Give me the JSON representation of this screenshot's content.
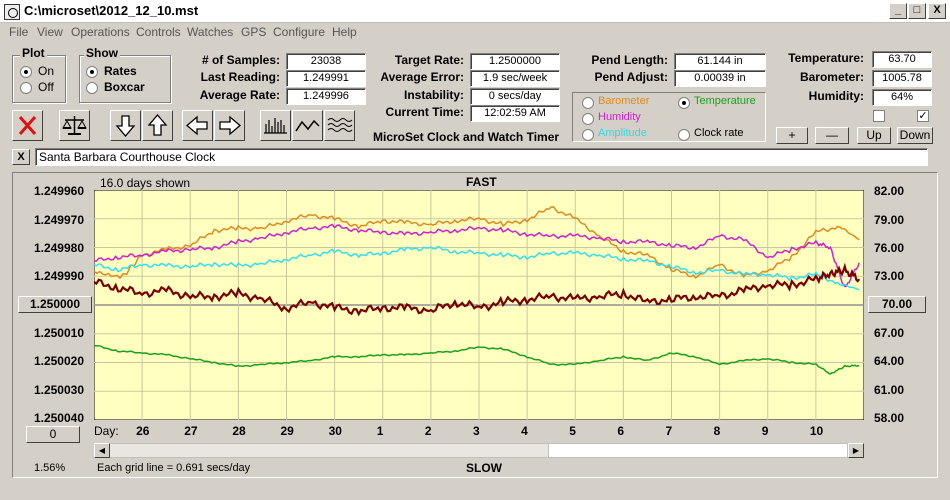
{
  "window": {
    "title": "C:\\microset\\2012_12_10.mst",
    "min": "_",
    "max": "□",
    "close": "X"
  },
  "menu": [
    "File",
    "View",
    "Operations",
    "Controls",
    "Watches",
    "GPS",
    "Configure",
    "Help"
  ],
  "plot_group": {
    "label": "Plot",
    "on": "On",
    "off": "Off"
  },
  "show_group": {
    "label": "Show",
    "rates": "Rates",
    "boxcar": "Boxcar"
  },
  "stats": [
    {
      "label": "# of Samples:",
      "value": "23038"
    },
    {
      "label": "Last Reading:",
      "value": "1.249991"
    },
    {
      "label": "Average Rate:",
      "value": "1.249996"
    }
  ],
  "rates": [
    {
      "label": "Target Rate:",
      "value": "1.2500000"
    },
    {
      "label": "Average Error:",
      "value": "1.9 sec/week"
    },
    {
      "label": "Instability:",
      "value": "0 secs/day"
    },
    {
      "label": "Current Time:",
      "value": "12:02:59 AM"
    }
  ],
  "pendulum": [
    {
      "label": "Pend Length:",
      "value": "61.144 in"
    },
    {
      "label": "Pend Adjust:",
      "value": "0.00039 in"
    }
  ],
  "env": [
    {
      "label": "Temperature:",
      "value": "63.70"
    },
    {
      "label": "Barometer:",
      "value": "1005.78"
    },
    {
      "label": "Humidity:",
      "value": "64%"
    }
  ],
  "env_checks": {
    "left": "",
    "right": "✓"
  },
  "trace_select": {
    "barometer": "Barometer",
    "temperature": "Temperature",
    "humidity": "Humidity",
    "amplitude": "Amplitude",
    "clock_rate": "Clock rate",
    "selected": "temperature"
  },
  "colors": {
    "barometer": "#e08a1e",
    "temperature": "#1aa01a",
    "humidity": "#d020d0",
    "amplitude": "#30e0f0",
    "clock_rate": "#7a0000",
    "plot_bg": "#ffffc0"
  },
  "app_caption": "MicroSet Clock and Watch Timer",
  "scale_buttons": {
    "plus": "+",
    "minus": "—",
    "up": "Up",
    "down": "Down"
  },
  "toolbar_icons": [
    "cancel-icon",
    "balance-icon",
    "arrow-down-icon",
    "arrow-up-icon",
    "arrow-left-icon",
    "arrow-right-icon",
    "histogram-icon",
    "wave-icon",
    "multi-wave-icon"
  ],
  "close_label": "X",
  "clock_name": "Santa Barbara Courthouse Clock",
  "chart_data": {
    "type": "line",
    "top_label": "FAST",
    "bottom_label": "SLOW",
    "days_shown": "16.0 days shown",
    "grid_note": "Each grid line = 0.691 secs/day",
    "scale_pct": "1.56%",
    "day_axis_label": "Day:",
    "left_ticks": [
      "1.249960",
      "1.249970",
      "1.249980",
      "1.249990",
      "1.250000",
      "1.250010",
      "1.250020",
      "1.250030",
      "1.250040"
    ],
    "right_ticks": [
      "82.00",
      "79.00",
      "76.00",
      "73.00",
      "70.00",
      "67.00",
      "64.00",
      "61.00",
      "58.00"
    ],
    "left_center_button": "1.250000",
    "right_center_button": "70.00",
    "left_bottom_button": "0",
    "x_days": [
      "26",
      "27",
      "28",
      "29",
      "30",
      "1",
      "2",
      "3",
      "4",
      "5",
      "6",
      "7",
      "8",
      "9",
      "10"
    ],
    "xlim": [
      0,
      16
    ],
    "ylim_right": [
      58,
      82
    ],
    "series": [
      {
        "key": "barometer",
        "x": [
          0,
          0.6,
          1,
          1.5,
          2,
          2.5,
          3,
          3.5,
          4,
          4.5,
          5,
          5.5,
          6,
          6.5,
          7,
          7.5,
          8,
          8.5,
          9,
          9.5,
          10,
          10.5,
          11,
          11.5,
          12,
          12.5,
          13,
          13.5,
          14,
          14.5,
          15,
          15.5,
          15.9
        ],
        "y": [
          73.5,
          73,
          75.2,
          75.8,
          76.2,
          77.8,
          78,
          78,
          78.8,
          79.4,
          79,
          78.2,
          78.8,
          78.6,
          78.4,
          78.8,
          79,
          78.4,
          78.9,
          80.2,
          79,
          77.2,
          75.6,
          75.2,
          73.7,
          73,
          74.2,
          73,
          73.6,
          75,
          77.6,
          78.2,
          76.8
        ]
      },
      {
        "key": "humidity",
        "x": [
          0,
          0.5,
          1,
          1.5,
          2,
          2.5,
          3,
          3.5,
          4,
          4.5,
          5,
          5.5,
          6,
          6.5,
          7,
          7.5,
          8,
          8.5,
          9,
          9.5,
          10,
          10.5,
          11,
          11.5,
          12,
          12.5,
          13,
          13.5,
          14,
          14.5,
          15,
          15.3,
          15.6,
          15.9
        ],
        "y": [
          74.6,
          75,
          75.2,
          75.6,
          75.8,
          76,
          76.6,
          77,
          77.6,
          78,
          78.2,
          77.8,
          77.6,
          77.4,
          77.6,
          77.8,
          78,
          77.8,
          77.4,
          77.2,
          77.2,
          77,
          76.6,
          76.6,
          76.2,
          76,
          77.2,
          76.8,
          75,
          75.8,
          76.5,
          76,
          71.7,
          74.4
        ]
      },
      {
        "key": "amplitude",
        "x": [
          0,
          0.5,
          1,
          1.5,
          2,
          2.5,
          3,
          3.5,
          4,
          4.5,
          5,
          5.5,
          6,
          6.5,
          7,
          7.5,
          8,
          8.5,
          9,
          9.5,
          10,
          10.5,
          11,
          11.5,
          12,
          12.5,
          13,
          13.5,
          14,
          14.5,
          15,
          15.5,
          15.9
        ],
        "y": [
          74.2,
          73.7,
          74.2,
          74.1,
          74,
          74.3,
          74.1,
          74.3,
          74.8,
          75.2,
          75.6,
          75.2,
          75.4,
          75.8,
          76,
          75.6,
          75.4,
          75.2,
          75,
          75.4,
          75.4,
          75.2,
          74.8,
          74.6,
          74,
          73.4,
          73.6,
          73.2,
          73.2,
          72.8,
          73.2,
          72.2,
          71.6
        ]
      },
      {
        "key": "clock_rate",
        "x": [
          0,
          0.5,
          1,
          1.5,
          2,
          2.5,
          3,
          3.5,
          4,
          4.5,
          5,
          5.5,
          6,
          6.5,
          7,
          7.5,
          8,
          8.5,
          9,
          9.5,
          10,
          10.5,
          11,
          11.5,
          12,
          12.5,
          13,
          13.5,
          14,
          14.5,
          15,
          15.3,
          15.6,
          15.9
        ],
        "y": [
          1.249992,
          1.249994,
          1.249996,
          1.249995,
          1.249997,
          1.249997,
          1.249996,
          1.249998,
          1.250001,
          1.249999,
          1.250001,
          1.250002,
          1.250001,
          1.250001,
          1.250002,
          1.249999,
          1.250001,
          1.249999,
          1.249998,
          1.249997,
          1.249998,
          1.249997,
          1.249996,
          1.249999,
          1.249998,
          1.249997,
          1.249997,
          1.249995,
          1.249993,
          1.249993,
          1.249991,
          1.249989,
          1.249988,
          1.249991
        ]
      },
      {
        "key": "temperature",
        "x": [
          0,
          0.5,
          1,
          1.5,
          2,
          2.5,
          3,
          3.5,
          4,
          4.5,
          5,
          5.5,
          6,
          6.5,
          7,
          7.5,
          8,
          8.5,
          9,
          9.5,
          10,
          10.5,
          11,
          11.5,
          12,
          12.5,
          13,
          13.5,
          14,
          14.5,
          15,
          15.3,
          15.6,
          15.9
        ],
        "y": [
          65.8,
          65.2,
          65,
          64.8,
          64.4,
          64,
          63.6,
          63.8,
          64,
          64.2,
          64.6,
          64.6,
          64.8,
          64.8,
          65,
          65.2,
          65.6,
          65.4,
          64.6,
          63.8,
          63.8,
          64.2,
          64.6,
          64.2,
          65,
          64.6,
          63.8,
          64.2,
          64.4,
          64,
          63.8,
          62.8,
          63.6,
          63.7
        ]
      }
    ]
  }
}
